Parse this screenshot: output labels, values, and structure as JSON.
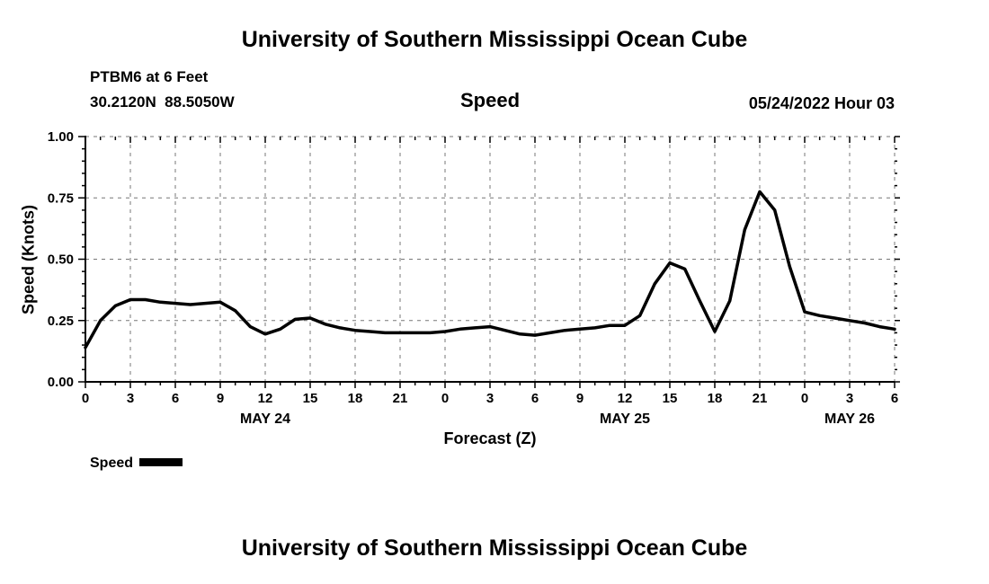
{
  "page": {
    "top_title": "University of Southern Mississippi Ocean Cube",
    "bottom_title": "University of Southern Mississippi Ocean Cube",
    "station_line1": "PTBM6 at 6 Feet",
    "station_line2": "30.2120N  88.5050W",
    "subtitle": "Speed",
    "datetime": "05/24/2022 Hour 03",
    "xlabel": "Forecast (Z)",
    "ylabel": "Speed (Knots)",
    "legend_label": "Speed"
  },
  "chart_data": {
    "type": "line",
    "title": "Speed",
    "station": "PTBM6 at 6 Feet",
    "location": "30.2120N  88.5050W",
    "run": "05/24/2022 Hour 03",
    "xlabel": "Forecast (Z)",
    "ylabel": "Speed (Knots)",
    "ylim": [
      0.0,
      1.0
    ],
    "xlim_hours": [
      0,
      54
    ],
    "grid": "dashed",
    "legend": {
      "position": "bottom-left",
      "entries": [
        "Speed"
      ]
    },
    "y_axis": {
      "ticks": [
        {
          "value": 0.0,
          "label": "0.00"
        },
        {
          "value": 0.25,
          "label": "0.25"
        },
        {
          "value": 0.5,
          "label": "0.50"
        },
        {
          "value": 0.75,
          "label": "0.75"
        },
        {
          "value": 1.0,
          "label": "1.00"
        }
      ]
    },
    "x_axis": {
      "ticks": [
        {
          "hour": 0,
          "label": "0"
        },
        {
          "hour": 3,
          "label": "3"
        },
        {
          "hour": 6,
          "label": "6"
        },
        {
          "hour": 9,
          "label": "9"
        },
        {
          "hour": 12,
          "label": "12"
        },
        {
          "hour": 15,
          "label": "15"
        },
        {
          "hour": 18,
          "label": "18"
        },
        {
          "hour": 21,
          "label": "21"
        },
        {
          "hour": 24,
          "label": "0"
        },
        {
          "hour": 27,
          "label": "3"
        },
        {
          "hour": 30,
          "label": "6"
        },
        {
          "hour": 33,
          "label": "9"
        },
        {
          "hour": 36,
          "label": "12"
        },
        {
          "hour": 39,
          "label": "15"
        },
        {
          "hour": 42,
          "label": "18"
        },
        {
          "hour": 45,
          "label": "21"
        },
        {
          "hour": 48,
          "label": "0"
        },
        {
          "hour": 51,
          "label": "3"
        },
        {
          "hour": 54,
          "label": "6"
        }
      ],
      "day_labels": [
        {
          "label": "MAY 24",
          "hour": 12
        },
        {
          "label": "MAY 25",
          "hour": 36
        },
        {
          "label": "MAY 26",
          "hour": 51
        }
      ]
    },
    "series": [
      {
        "name": "Speed",
        "color": "#000000",
        "x_hours": [
          0,
          1,
          2,
          3,
          4,
          5,
          6,
          7,
          8,
          9,
          10,
          11,
          12,
          13,
          14,
          15,
          16,
          17,
          18,
          19,
          20,
          21,
          22,
          23,
          24,
          25,
          26,
          27,
          28,
          29,
          30,
          31,
          32,
          33,
          34,
          35,
          36,
          37,
          38,
          39,
          40,
          41,
          42,
          43,
          44,
          45,
          46,
          47,
          48,
          49,
          50,
          51,
          52,
          53,
          54
        ],
        "values": [
          0.14,
          0.25,
          0.31,
          0.335,
          0.335,
          0.325,
          0.32,
          0.315,
          0.32,
          0.325,
          0.29,
          0.225,
          0.195,
          0.215,
          0.255,
          0.26,
          0.235,
          0.22,
          0.21,
          0.205,
          0.2,
          0.2,
          0.2,
          0.2,
          0.205,
          0.215,
          0.22,
          0.225,
          0.21,
          0.195,
          0.19,
          0.2,
          0.21,
          0.215,
          0.22,
          0.23,
          0.23,
          0.27,
          0.4,
          0.485,
          0.46,
          0.33,
          0.205,
          0.33,
          0.62,
          0.775,
          0.7,
          0.47,
          0.285,
          0.27,
          0.26,
          0.25,
          0.24,
          0.225,
          0.215
        ]
      }
    ]
  }
}
